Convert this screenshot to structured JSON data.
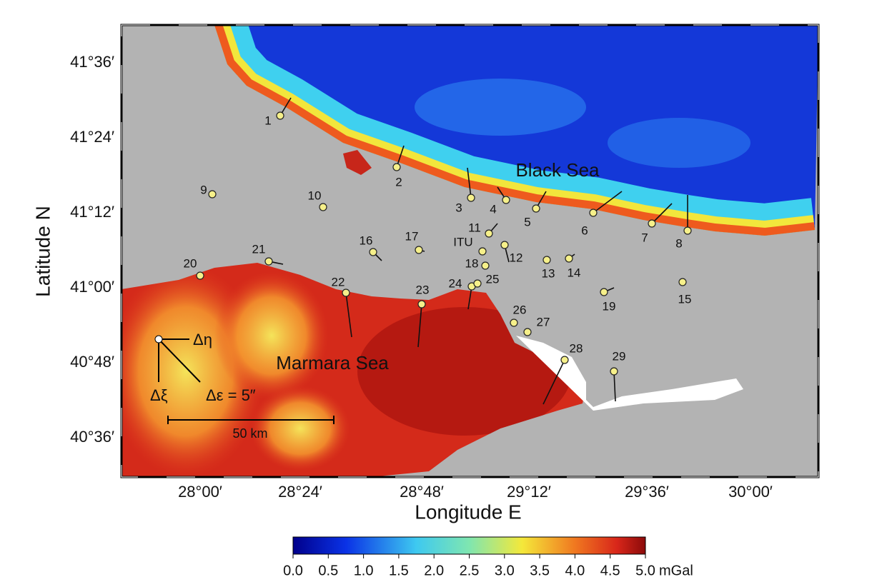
{
  "axes": {
    "y_label": "Latitude N",
    "x_label": "Longitude E",
    "lat_ticks": [
      "41°36′",
      "41°24′",
      "41°12′",
      "41°00′",
      "40°48′",
      "40°36′"
    ],
    "lon_ticks": [
      "28°00′",
      "28°24′",
      "28°48′",
      "29°12′",
      "29°36′",
      "30°00′"
    ]
  },
  "map_labels": {
    "black_sea": "Black Sea",
    "marmara_sea": "Marmara Sea"
  },
  "stations": [
    "1",
    "2",
    "3",
    "4",
    "5",
    "6",
    "7",
    "8",
    "9",
    "10",
    "11",
    "12",
    "13",
    "14",
    "15",
    "16",
    "17",
    "18",
    "19",
    "20",
    "21",
    "22",
    "23",
    "24",
    "25",
    "26",
    "27",
    "28",
    "29",
    "ITU"
  ],
  "legend": {
    "eta": "Δη",
    "xi": "Δξ",
    "epsilon": "Δε = 5″",
    "scale": "50 km"
  },
  "colorbar": {
    "ticks": [
      "0.0",
      "0.5",
      "1.0",
      "1.5",
      "2.0",
      "2.5",
      "3.0",
      "3.5",
      "4.0",
      "4.5",
      "5.0"
    ],
    "unit": "mGal"
  }
}
